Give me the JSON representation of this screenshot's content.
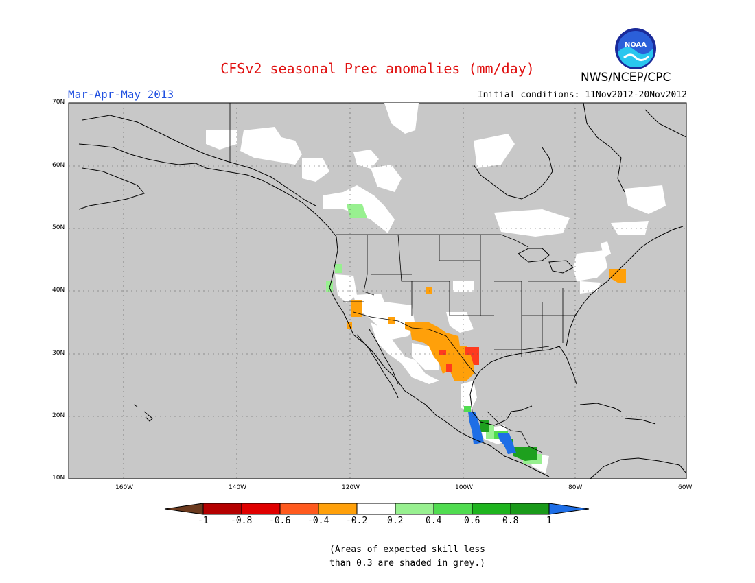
{
  "title": "CFSv2 seasonal Prec anomalies (mm/day)",
  "period": "Mar-Apr-May 2013",
  "initial_conditions": "Initial conditions: 11Nov2012-20Nov2012",
  "agency": "NWS/NCEP/CPC",
  "logo_text": "NOAA",
  "lat_labels": [
    "70N",
    "60N",
    "50N",
    "40N",
    "30N",
    "20N",
    "10N"
  ],
  "lon_labels": [
    "160W",
    "140W",
    "120W",
    "100W",
    "80W",
    "60W"
  ],
  "colorbar": {
    "labels": [
      "-1",
      "-0.8",
      "-0.6",
      "-0.4",
      "-0.2",
      "0.2",
      "0.4",
      "0.6",
      "0.8",
      "1"
    ],
    "colors": [
      "#6b3a1e",
      "#b40000",
      "#e00000",
      "#ff5a1e",
      "#ffa00a",
      "#ffffff",
      "#98f090",
      "#50dc50",
      "#1eb41e",
      "#1a9a1a",
      "#1e6ee6"
    ]
  },
  "note_line1": "(Areas of expected skill less",
  "note_line2": "than 0.3 are shaded in grey.)",
  "map_colors": {
    "grey": "#c8c8c8",
    "white": "#ffffff",
    "orange": "#ffa00a",
    "red": "#ff3a1e",
    "lightgreen": "#98f090",
    "green": "#50dc50",
    "darkgreen": "#1ea01e",
    "blue": "#1e6ee6"
  }
}
